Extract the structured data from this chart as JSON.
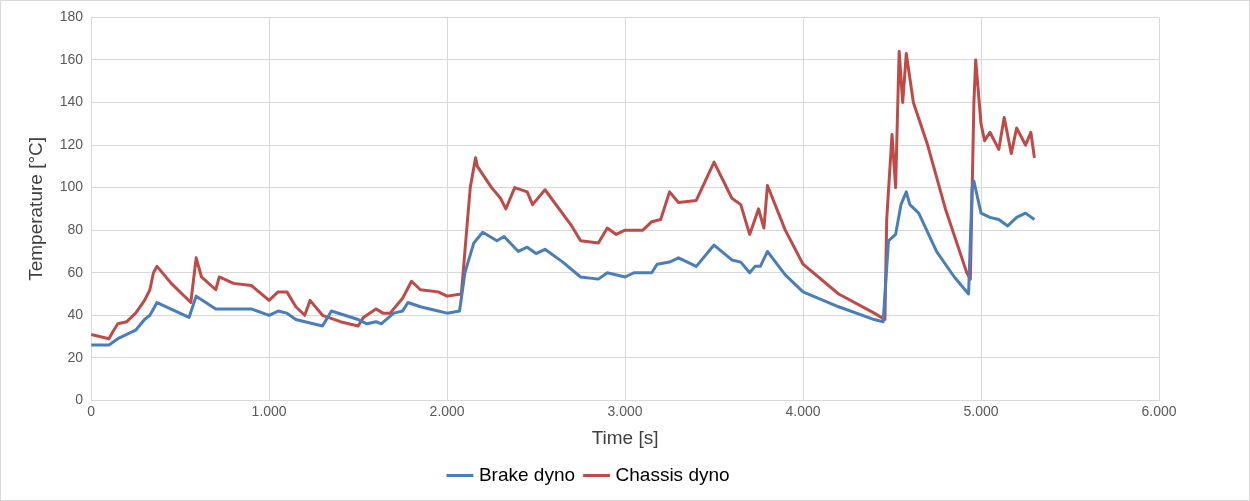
{
  "chart_data": {
    "type": "line",
    "xlabel": "Time [s]",
    "ylabel": "Temperature [°C]",
    "xlim": [
      0,
      6000
    ],
    "xticks": [
      0,
      {
        "value": 1000,
        "label": "1.000"
      },
      {
        "value": 2000,
        "label": "2.000"
      },
      {
        "value": 3000,
        "label": "3.000"
      },
      {
        "value": 4000,
        "label": "4.000"
      },
      {
        "value": 5000,
        "label": "5.000"
      },
      {
        "value": 6000,
        "label": "6.000"
      }
    ],
    "ylim": [
      0,
      180
    ],
    "yticks": [
      0,
      20,
      40,
      60,
      80,
      100,
      120,
      140,
      160,
      180
    ],
    "grid": true,
    "legend": "bottom",
    "marker": "none",
    "line_style": "solid",
    "series": [
      {
        "name": "Brake dyno",
        "color": "#4a7ebb",
        "x": [
          0,
          100,
          150,
          250,
          300,
          330,
          370,
          550,
          590,
          700,
          800,
          900,
          1000,
          1050,
          1100,
          1150,
          1300,
          1350,
          1500,
          1550,
          1600,
          1630,
          1700,
          1750,
          1780,
          1850,
          1950,
          2000,
          2070,
          2100,
          2150,
          2200,
          2280,
          2320,
          2400,
          2450,
          2500,
          2550,
          2650,
          2750,
          2850,
          2900,
          3000,
          3050,
          3150,
          3180,
          3250,
          3300,
          3400,
          3500,
          3600,
          3650,
          3700,
          3730,
          3760,
          3800,
          3900,
          4000,
          4200,
          4400,
          4450,
          4480,
          4520,
          4550,
          4580,
          4600,
          4650,
          4750,
          4850,
          4930,
          4950,
          4960,
          5000,
          5050,
          5100,
          5150,
          5200,
          5250,
          5300
        ],
        "values": [
          26,
          26,
          29,
          33,
          38,
          40,
          46,
          39,
          49,
          43,
          43,
          43,
          40,
          42,
          41,
          38,
          35,
          42,
          38,
          36,
          37,
          36,
          41,
          42,
          46,
          44,
          42,
          41,
          42,
          60,
          74,
          79,
          75,
          77,
          70,
          72,
          69,
          71,
          65,
          58,
          57,
          60,
          58,
          60,
          60,
          64,
          65,
          67,
          63,
          73,
          66,
          65,
          60,
          63,
          63,
          70,
          59,
          51,
          44,
          38,
          37,
          75,
          78,
          92,
          98,
          92,
          88,
          70,
          58,
          50,
          100,
          103,
          88,
          86,
          85,
          82,
          86,
          88,
          85
        ]
      },
      {
        "name": "Chassis dyno",
        "color": "#be4b48",
        "x": [
          0,
          100,
          120,
          150,
          200,
          250,
          300,
          330,
          350,
          370,
          450,
          560,
          590,
          620,
          700,
          720,
          800,
          900,
          1000,
          1050,
          1100,
          1150,
          1200,
          1230,
          1300,
          1400,
          1500,
          1530,
          1600,
          1640,
          1680,
          1750,
          1800,
          1850,
          1950,
          2000,
          2080,
          2100,
          2130,
          2160,
          2170,
          2250,
          2300,
          2330,
          2380,
          2450,
          2480,
          2550,
          2700,
          2750,
          2850,
          2900,
          2950,
          3000,
          3100,
          3150,
          3200,
          3250,
          3300,
          3400,
          3500,
          3600,
          3650,
          3700,
          3750,
          3780,
          3800,
          3900,
          4000,
          4200,
          4400,
          4460,
          4470,
          4500,
          4520,
          4540,
          4560,
          4580,
          4620,
          4700,
          4800,
          4920,
          4940,
          4960,
          4970,
          5000,
          5020,
          5050,
          5100,
          5130,
          5170,
          5200,
          5250,
          5280,
          5300
        ],
        "values": [
          31,
          29,
          32,
          36,
          37,
          41,
          47,
          52,
          60,
          63,
          55,
          46,
          67,
          58,
          52,
          58,
          55,
          54,
          47,
          51,
          51,
          44,
          40,
          47,
          40,
          37,
          35,
          39,
          43,
          41,
          41,
          48,
          56,
          52,
          51,
          49,
          50,
          70,
          100,
          114,
          110,
          100,
          95,
          90,
          100,
          98,
          92,
          99,
          82,
          75,
          74,
          81,
          78,
          80,
          80,
          84,
          85,
          98,
          93,
          94,
          112,
          95,
          92,
          78,
          90,
          81,
          101,
          80,
          64,
          50,
          41,
          38,
          85,
          125,
          100,
          164,
          140,
          163,
          140,
          120,
          90,
          60,
          57,
          140,
          160,
          130,
          122,
          126,
          118,
          133,
          116,
          128,
          120,
          126,
          114
        ]
      }
    ]
  }
}
